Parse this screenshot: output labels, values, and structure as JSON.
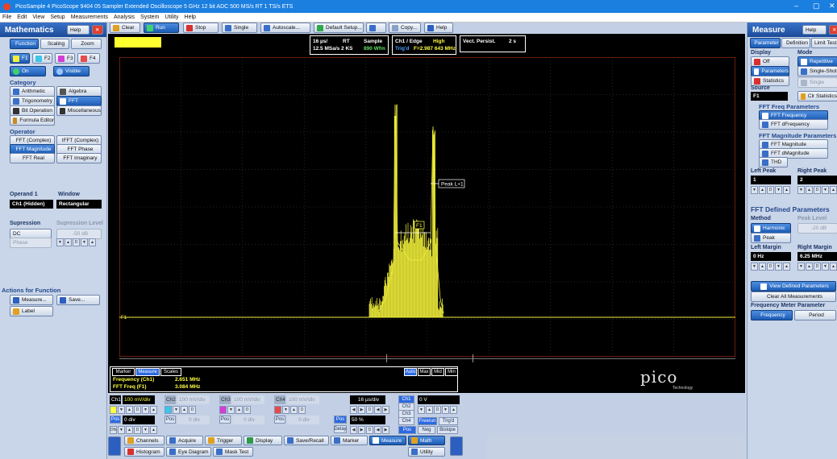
{
  "window": {
    "title": "PicoSample 4  PicoScope 9404 05  Sampler Extended Oscilloscope  5 GHz  12 bit ADC  500 MS/s RT  1 TS/s ETS",
    "controls": [
      "–",
      "▢",
      "✕"
    ]
  },
  "menu": [
    "File",
    "Edit",
    "View",
    "Setup",
    "Measurements",
    "Analysis",
    "System",
    "Utility",
    "Help"
  ],
  "left": {
    "title": "Mathematics",
    "help": "Help",
    "tabs": [
      "Function",
      "Scaling",
      "Zoom"
    ],
    "functions": [
      "F1",
      "F2",
      "F3",
      "F4"
    ],
    "on": "On",
    "visible": "Visible",
    "category_title": "Category",
    "categories": [
      "Arithmetic",
      "Algebra",
      "Trigonometry",
      "FFT",
      "Bit Operation",
      "Miscellaneous",
      "Formula Editor"
    ],
    "operator_title": "Operator",
    "operators": [
      "FFT (Complex)",
      "IFFT (Complex)",
      "FFT Magnitude",
      "FFT Phase",
      "FFT Real",
      "FFT Imaginary"
    ],
    "operand_title": "Operand 1",
    "operand_value": "Ch1 (Hidden)",
    "window_title": "Window",
    "window_value": "Rectangular",
    "supression_title": "Supression",
    "supression_level_title": "Supression Level",
    "dc": "DC",
    "level": "-50 dB",
    "phase": "Phase",
    "actions_title": "Actions for Function",
    "measure": "Measure...",
    "save": "Save...",
    "label": "Label"
  },
  "toolbar": {
    "clear": "Clear",
    "run": "Run",
    "stop": "Stop",
    "single": "Single",
    "autoscale": "Autoscale...",
    "default": "Default Setup...",
    "copy": "Copy...",
    "help": "Help"
  },
  "header": {
    "time1": "16 µs/",
    "time2": "12.5 MSa/s 2 KS",
    "rt": "RT",
    "sample": "Sample",
    "wfm": "890 Wfm",
    "trig1": "Ch1 / Edge",
    "trig2": "High",
    "trig3": "Trig'd",
    "trig4": "F=2.987 643 MHz",
    "persist": "Vect. Persist.",
    "persist_val": "2 s"
  },
  "plot": {
    "marker_f1": "F1",
    "marker_peak": "Peak L+1",
    "trace_label": "F1"
  },
  "bottom_panel": {
    "tabs": [
      "Marker",
      "Measure",
      "Scales"
    ],
    "modes": [
      "Auto",
      "Max",
      "Mid",
      "Min"
    ],
    "rows": [
      {
        "name": "Frequency (Ch1)",
        "value": "2.651 MHz"
      },
      {
        "name": "FFT Freq (F1)",
        "value": "3.084 MHz"
      }
    ],
    "logo": "pico",
    "logo_sub": "Technology"
  },
  "channels": [
    {
      "name": "Ch1",
      "scale": "100 mV/div",
      "pos": "0 div"
    },
    {
      "name": "Ch2",
      "scale": "100 mV/div",
      "pos": "0 div"
    },
    {
      "name": "Ch3",
      "scale": "100 mV/div",
      "pos": "0 div"
    },
    {
      "name": "Ch4",
      "scale": "100 mV/div",
      "pos": "0 div"
    }
  ],
  "timebase": {
    "scale": "16 µs/div",
    "pos_label": "Pos",
    "delay_label": "Delay",
    "pos": "50 %"
  },
  "trigger": {
    "chs": [
      "Ch1",
      "Ch2",
      "Ch3",
      "Ch4"
    ],
    "level": "0 V",
    "freerun": "Freerun",
    "trigd": "Trig'd",
    "pos": "Pos",
    "neg": "Neg",
    "bislope": "Bislope"
  },
  "bottom_buttons": [
    "Channels",
    "Acquire",
    "Trigger",
    "Display",
    "Save/Recall",
    "Marker",
    "Measure",
    "Math",
    "Histogram",
    "Eye Diagram",
    "Mask Test",
    "Utility"
  ],
  "right": {
    "title": "Measure",
    "help": "Help",
    "tabs": [
      "Parameter",
      "Definition",
      "Limit Test"
    ],
    "display_title": "Display",
    "mode_title": "Mode",
    "off": "Off",
    "parameters": "Parameters",
    "statistics": "Statistics",
    "repetitive": "Repetitive",
    "single_shot": "Single-Shot",
    "single": "Single",
    "source_title": "Source",
    "source_value": "F1",
    "clr": "Clr Statistics",
    "freq_params_title": "FFT Freq Parameters",
    "fft_frequency": "FFT Frequency",
    "fft_dfrequency": "FFT dFrequency",
    "mag_params_title": "FFT Magnitude Parameters",
    "fft_magnitude": "FFT Magnitude",
    "fft_dmagnitude": "FFT dMagnitude",
    "thd": "THD",
    "left_peak": "Left Peak",
    "right_peak": "Right Peak",
    "left_peak_val": "1",
    "right_peak_val": "2",
    "fft_defined_title": "FFT Defined Parameters",
    "method_title": "Method",
    "peak_level_title": "Peak Level",
    "harmonic": "Harmonic",
    "peak": "Peak",
    "peak_level_val": "-20 dB",
    "left_margin": "Left Margin",
    "right_margin": "Right Margin",
    "left_margin_val": "0 Hz",
    "right_margin_val": "6.25 MHz",
    "view_defined": "View Defined Parameters",
    "clear_all": "Clear All Measurements",
    "freq_meter_title": "Frequency Meter Parameter",
    "frequency": "Frequency",
    "period": "Period"
  },
  "colors": {
    "accent": "#1b7fe0",
    "trace": "#f2f03a",
    "plot_bg": "#000000",
    "grid": "#4a4a4a"
  }
}
